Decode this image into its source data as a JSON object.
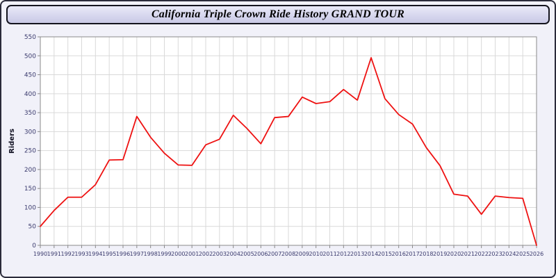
{
  "window": {
    "title": "California Triple Crown Ride History GRAND TOUR"
  },
  "chart_data": {
    "type": "line",
    "title": "California Triple Crown Ride History GRAND TOUR",
    "xlabel": "",
    "ylabel": "Riders",
    "ylim": [
      0,
      550
    ],
    "ytick_step": 50,
    "grid": true,
    "legend": "none",
    "line_color": "#ee1111",
    "plot_bg": "#ffffff",
    "grid_color": "#d9d9d9",
    "axis_color": "#8a8a8a",
    "tick_label_color": "#3b3b6e",
    "categories": [
      1990,
      1991,
      1992,
      1993,
      1994,
      1995,
      1996,
      1997,
      1998,
      1999,
      2000,
      2001,
      2002,
      2003,
      2004,
      2005,
      2006,
      2007,
      2008,
      2009,
      2010,
      2011,
      2012,
      2013,
      2014,
      2015,
      2016,
      2017,
      2018,
      2019,
      2020,
      2021,
      2022,
      2023,
      2024,
      2025,
      2026
    ],
    "values": [
      50,
      92,
      127,
      127,
      160,
      225,
      226,
      340,
      285,
      243,
      212,
      211,
      265,
      280,
      343,
      308,
      268,
      337,
      340,
      391,
      374,
      379,
      411,
      383,
      495,
      387,
      345,
      320,
      258,
      210,
      135,
      130,
      82,
      130,
      126,
      124,
      0
    ]
  }
}
